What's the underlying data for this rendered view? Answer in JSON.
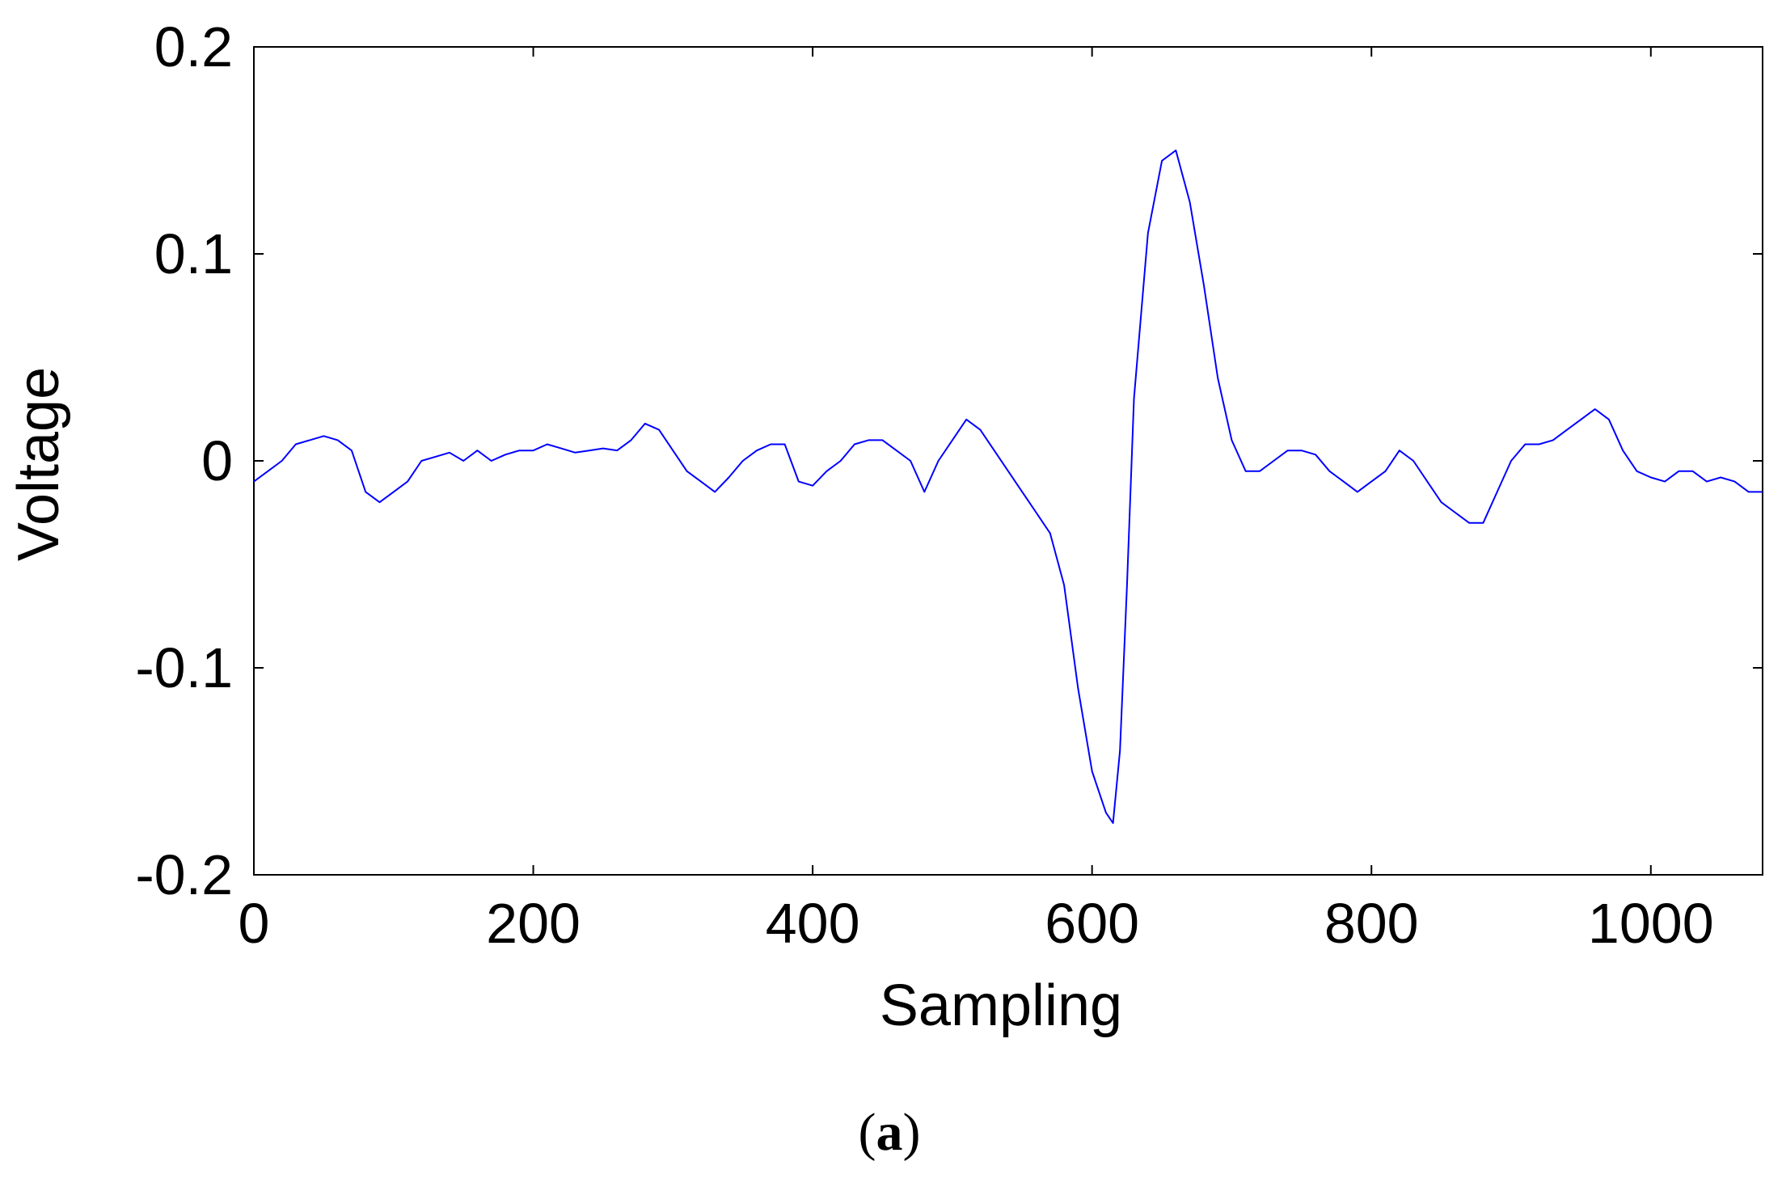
{
  "chart_data": {
    "type": "line",
    "title": "",
    "xlabel": "Sampling",
    "ylabel": "Voltage",
    "xlim": [
      0,
      1080
    ],
    "ylim": [
      -0.2,
      0.2
    ],
    "xticks": [
      0,
      200,
      400,
      600,
      800,
      1000
    ],
    "xtick_labels": [
      "0",
      "200",
      "400",
      "600",
      "800",
      "1000"
    ],
    "yticks": [
      -0.2,
      -0.1,
      0,
      0.1,
      0.2
    ],
    "ytick_labels": [
      "-0.2",
      "-0.1",
      "0",
      "0.1",
      "0.2"
    ],
    "grid": false,
    "line_color": "#0000ff",
    "caption_open": "(",
    "caption_letter": "a",
    "caption_close": ")",
    "series": [
      {
        "x": [
          0,
          10,
          20,
          30,
          40,
          50,
          60,
          70,
          80,
          90,
          100,
          110,
          120,
          130,
          140,
          150,
          160,
          170,
          180,
          190,
          200,
          210,
          220,
          230,
          240,
          250,
          260,
          270,
          280,
          290,
          300,
          310,
          320,
          330,
          340,
          350,
          360,
          370,
          380,
          390,
          400,
          410,
          420,
          430,
          440,
          450,
          460,
          470,
          480,
          490,
          500,
          510,
          520,
          530,
          540,
          550,
          560,
          570,
          580,
          590,
          600,
          610,
          615,
          620,
          625,
          630,
          640,
          650,
          660,
          670,
          680,
          690,
          700,
          710,
          720,
          730,
          740,
          750,
          760,
          770,
          780,
          790,
          800,
          810,
          820,
          830,
          840,
          850,
          860,
          870,
          880,
          890,
          900,
          910,
          920,
          930,
          940,
          950,
          960,
          970,
          980,
          990,
          1000,
          1010,
          1020,
          1030,
          1040,
          1050,
          1060,
          1070,
          1080
        ],
        "y": [
          -0.01,
          -0.005,
          0.0,
          0.008,
          0.01,
          0.012,
          0.01,
          0.005,
          -0.015,
          -0.02,
          -0.015,
          -0.01,
          0.0,
          0.002,
          0.004,
          0.0,
          0.005,
          0.0,
          0.003,
          0.005,
          0.005,
          0.008,
          0.006,
          0.004,
          0.005,
          0.006,
          0.005,
          0.01,
          0.018,
          0.015,
          0.005,
          -0.005,
          -0.01,
          -0.015,
          -0.008,
          0.0,
          0.005,
          0.008,
          0.008,
          -0.01,
          -0.012,
          -0.005,
          0.0,
          0.008,
          0.01,
          0.01,
          0.005,
          0.0,
          -0.015,
          0.0,
          0.01,
          0.02,
          0.015,
          0.005,
          -0.005,
          -0.015,
          -0.025,
          -0.035,
          -0.06,
          -0.11,
          -0.15,
          -0.17,
          -0.175,
          -0.14,
          -0.06,
          0.03,
          0.11,
          0.145,
          0.15,
          0.125,
          0.085,
          0.04,
          0.01,
          -0.005,
          -0.005,
          0.0,
          0.005,
          0.005,
          0.003,
          -0.005,
          -0.01,
          -0.015,
          -0.01,
          -0.005,
          0.005,
          0.0,
          -0.01,
          -0.02,
          -0.025,
          -0.03,
          -0.03,
          -0.015,
          0.0,
          0.008,
          0.008,
          0.01,
          0.015,
          0.02,
          0.025,
          0.02,
          0.005,
          -0.005,
          -0.008,
          -0.01,
          -0.005,
          -0.005,
          -0.01,
          -0.008,
          -0.01,
          -0.015,
          -0.015
        ]
      }
    ]
  }
}
